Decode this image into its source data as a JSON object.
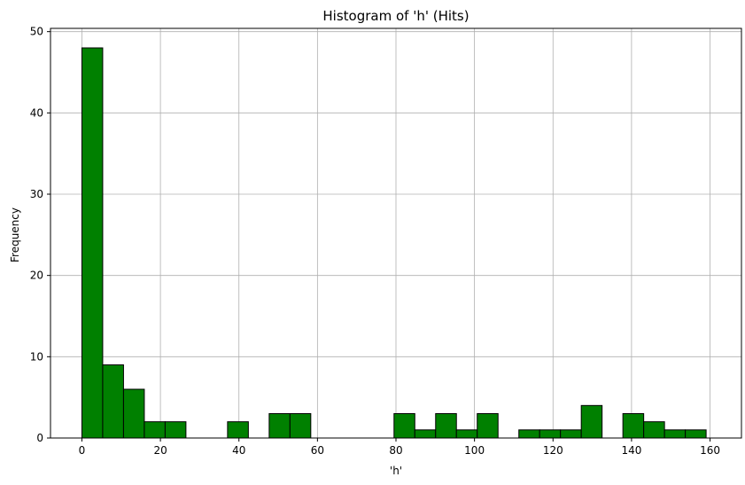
{
  "chart_data": {
    "type": "bar",
    "title": "Histogram of 'h' (Hits)",
    "xlabel": "'h'",
    "ylabel": "Frequency",
    "xlim": [
      -8,
      168
    ],
    "ylim": [
      0,
      50.4
    ],
    "xticks": [
      0,
      20,
      40,
      60,
      80,
      100,
      120,
      140,
      160
    ],
    "yticks": [
      0,
      10,
      20,
      30,
      40,
      50
    ],
    "grid": true,
    "bin_width": 5.3,
    "bins": [
      {
        "start": 0.0,
        "end": 5.3,
        "value": 48
      },
      {
        "start": 5.3,
        "end": 10.6,
        "value": 9
      },
      {
        "start": 10.6,
        "end": 15.9,
        "value": 6
      },
      {
        "start": 15.9,
        "end": 21.2,
        "value": 2
      },
      {
        "start": 21.2,
        "end": 26.5,
        "value": 2
      },
      {
        "start": 26.5,
        "end": 31.8,
        "value": 0
      },
      {
        "start": 31.8,
        "end": 37.1,
        "value": 0
      },
      {
        "start": 37.1,
        "end": 42.4,
        "value": 2
      },
      {
        "start": 42.4,
        "end": 47.7,
        "value": 0
      },
      {
        "start": 47.7,
        "end": 53.0,
        "value": 3
      },
      {
        "start": 53.0,
        "end": 58.3,
        "value": 3
      },
      {
        "start": 58.3,
        "end": 63.6,
        "value": 0
      },
      {
        "start": 63.6,
        "end": 68.9,
        "value": 0
      },
      {
        "start": 68.9,
        "end": 74.2,
        "value": 0
      },
      {
        "start": 74.2,
        "end": 79.5,
        "value": 0
      },
      {
        "start": 79.5,
        "end": 84.8,
        "value": 3
      },
      {
        "start": 84.8,
        "end": 90.1,
        "value": 1
      },
      {
        "start": 90.1,
        "end": 95.4,
        "value": 3
      },
      {
        "start": 95.4,
        "end": 100.7,
        "value": 1
      },
      {
        "start": 100.7,
        "end": 106.0,
        "value": 3
      },
      {
        "start": 106.0,
        "end": 111.3,
        "value": 0
      },
      {
        "start": 111.3,
        "end": 116.6,
        "value": 1
      },
      {
        "start": 116.6,
        "end": 121.9,
        "value": 1
      },
      {
        "start": 121.9,
        "end": 127.2,
        "value": 1
      },
      {
        "start": 127.2,
        "end": 132.5,
        "value": 4
      },
      {
        "start": 132.5,
        "end": 137.8,
        "value": 0
      },
      {
        "start": 137.8,
        "end": 143.1,
        "value": 3
      },
      {
        "start": 143.1,
        "end": 148.4,
        "value": 2
      },
      {
        "start": 148.4,
        "end": 153.7,
        "value": 1
      },
      {
        "start": 153.7,
        "end": 159.0,
        "value": 1
      }
    ],
    "colors": {
      "bar_fill": "#008000",
      "bar_edge": "#000000",
      "grid": "#b0b0b0",
      "axes": "#000000"
    }
  }
}
